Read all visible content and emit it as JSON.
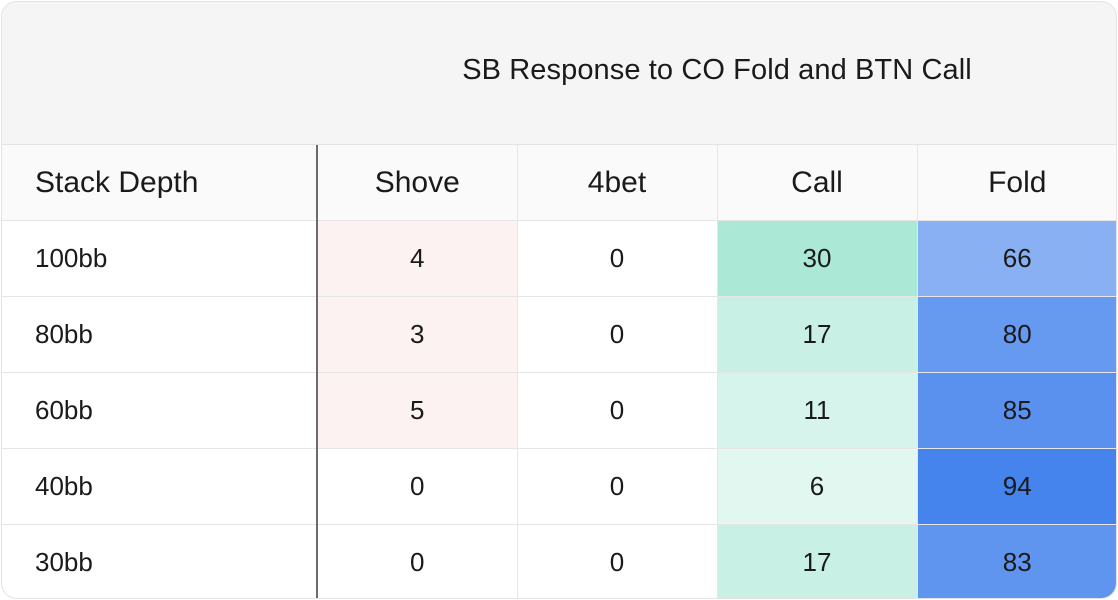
{
  "chart_data": {
    "type": "table",
    "title": "SB Response to CO Fold and BTN Call",
    "columns": [
      "Stack Depth",
      "Shove",
      "4bet",
      "Call",
      "Fold"
    ],
    "rows": [
      {
        "label": "100bb",
        "values": [
          4,
          0,
          30,
          66
        ]
      },
      {
        "label": "80bb",
        "values": [
          3,
          0,
          17,
          80
        ]
      },
      {
        "label": "60bb",
        "values": [
          5,
          0,
          11,
          85
        ]
      },
      {
        "label": "40bb",
        "values": [
          0,
          0,
          6,
          94
        ]
      },
      {
        "label": "30bb",
        "values": [
          0,
          0,
          17,
          83
        ]
      }
    ],
    "column_colors": {
      "Shove": "#f8d7d7",
      "4bet": "#ffffff",
      "Call": "#58d2ae",
      "Fold": "#3f7fec"
    }
  }
}
